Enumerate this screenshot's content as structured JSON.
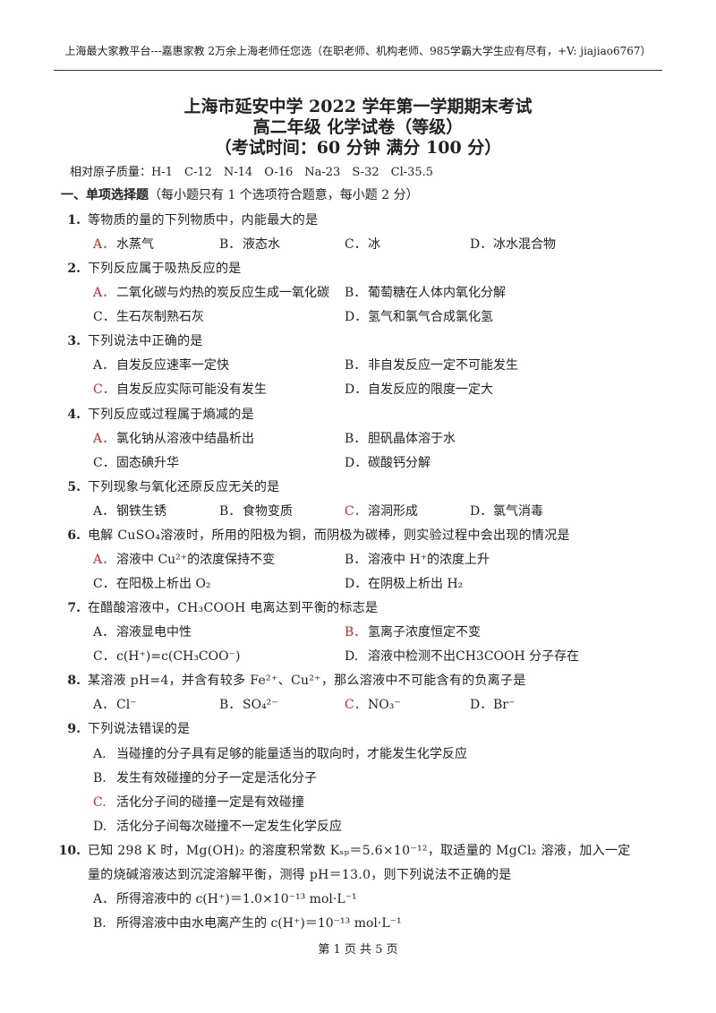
{
  "header": {
    "note": "上海最大家教平台---嘉惠家教 2万余上海老师任您选（在职老师、机构老师、985学霸大学生应有尽有，+V: jiajiao6767）"
  },
  "title": {
    "lines": [
      "上海市延安中学 2022 学年第一学期期末考试",
      "高二年级 化学试卷（等级）",
      "（考试时间：60 分钟 满分 100 分）"
    ]
  },
  "atomic_masses": "相对原子质量：H-1　C-12　N-14　O-16　Na-23　S-32　Cl-35.5",
  "section": {
    "heading": "一、单项选择题",
    "note": "（每小题只有 1 个选项符合题意，每小题 2 分）"
  },
  "questions": [
    {
      "number": "1.",
      "stem": "等物质的量的下列物质中，内能最大的是",
      "options": [
        {
          "label": "A．",
          "text": "水蒸气",
          "color": "#e02020"
        },
        {
          "label": "B．",
          "text": "液态水"
        },
        {
          "label": "C．",
          "text": "冰"
        },
        {
          "label": "D．",
          "text": "冰水混合物"
        }
      ]
    },
    {
      "number": "2.",
      "stem": "下列反应属于吸热反应的是",
      "options": [
        {
          "label": "A．",
          "text": "二氧化碳与灼热的炭反应生成一氧化碳",
          "color": "#e02020"
        },
        {
          "label": "B．",
          "text": "葡萄糖在人体内氧化分解"
        },
        {
          "label": "C．",
          "text": "生石灰制熟石灰"
        },
        {
          "label": "D．",
          "text": "氢气和氯气合成氯化氢"
        }
      ]
    },
    {
      "number": "3.",
      "stem": "下列说法中正确的是",
      "options": [
        {
          "label": "A．",
          "text": "自发反应速率一定快"
        },
        {
          "label": "B．",
          "text": "非自发反应一定不可能发生"
        },
        {
          "label": "C．",
          "text": "自发反应实际可能没有发生",
          "color": "#e02020"
        },
        {
          "label": "D．",
          "text": "自发反应的限度一定大"
        }
      ]
    },
    {
      "number": "4.",
      "stem": "下列反应或过程属于熵减的是",
      "options": [
        {
          "label": "A．",
          "text": "氯化钠从溶液中结晶析出",
          "color": "#e02020"
        },
        {
          "label": "B．",
          "text": "胆矾晶体溶于水"
        },
        {
          "label": "C．",
          "text": "固态碘升华"
        },
        {
          "label": "D．",
          "text": "碳酸钙分解"
        }
      ]
    },
    {
      "number": "5.",
      "stem": "下列现象与氧化还原反应无关的是",
      "options": [
        {
          "label": "A．",
          "text": "钢铁生锈"
        },
        {
          "label": "B．",
          "text": "食物变质"
        },
        {
          "label": "C．",
          "text": "溶洞形成",
          "color": "#e02020"
        },
        {
          "label": "D．",
          "text": "氯气消毒"
        }
      ]
    },
    {
      "number": "6.",
      "stem": "电解 CuSO₄溶液时，所用的阳极为铜，而阴极为碳棒，则实验过程中会出现的情况是",
      "options": [
        {
          "label": "A．",
          "text": "溶液中 Cu²⁺的浓度保持不变",
          "color": "#e02020"
        },
        {
          "label": "B．",
          "text": "溶液中 H⁺的浓度上升"
        },
        {
          "label": "C．",
          "text": "在阳极上析出 O₂"
        },
        {
          "label": "D．",
          "text": "在阴极上析出 H₂"
        }
      ]
    },
    {
      "number": "7.",
      "stem": "在醋酸溶液中，CH₃COOH 电离达到平衡的标志是",
      "options": [
        {
          "label": "A．",
          "text": "溶液显电中性"
        },
        {
          "label": "B．",
          "text": "氢离子浓度恒定不变",
          "color": "#e02020"
        },
        {
          "label": "C．",
          "text": "c(H⁺)=c(CH₃COO⁻)"
        },
        {
          "label": "D.",
          "text": "溶液中检测不出CH3COOH 分子存在"
        }
      ]
    },
    {
      "number": "8.",
      "stem": "某溶液 pH=4，并含有较多 Fe²⁺、Cu²⁺，那么溶液中不可能含有的负离子是",
      "options": [
        {
          "label": "A．",
          "text": "Cl⁻"
        },
        {
          "label": "B．",
          "text": "SO₄²⁻"
        },
        {
          "label": "C．",
          "text": "NO₃⁻",
          "color": "#e02020"
        },
        {
          "label": "D．",
          "text": "Br⁻"
        }
      ]
    },
    {
      "number": "9.",
      "stem": "下列说法错误的是",
      "options": [
        {
          "label": "A.",
          "text": "当碰撞的分子具有足够的能量适当的取向时，才能发生化学反应"
        },
        {
          "label": "B.",
          "text": "发生有效碰撞的分子一定是活化分子"
        },
        {
          "label": "C.",
          "text": "活化分子间的碰撞一定是有效碰撞",
          "color": "#e02020"
        },
        {
          "label": "D.",
          "text": "活化分子间每次碰撞不一定发生化学反应"
        }
      ]
    },
    {
      "number": "10.",
      "stem": "已知 298 K 时，Mg(OH)₂ 的溶度积常数 Kₛₚ＝5.6×10⁻¹²，取适量的 MgCl₂ 溶液，加入一定量的烧碱溶液达到沉淀溶解平衡，测得 pH＝13.0，则下列说法不正确的是",
      "options": [
        {
          "label": "A．",
          "text": "所得溶液中的 c(H⁺)＝1.0×10⁻¹³ mol·L⁻¹"
        },
        {
          "label": "B.",
          "text": "所得溶液中由水电离产生的 c(H⁺)＝10⁻¹³ mol·L⁻¹"
        }
      ]
    }
  ],
  "footer": {
    "page": "第 1 页 共 5 页"
  }
}
